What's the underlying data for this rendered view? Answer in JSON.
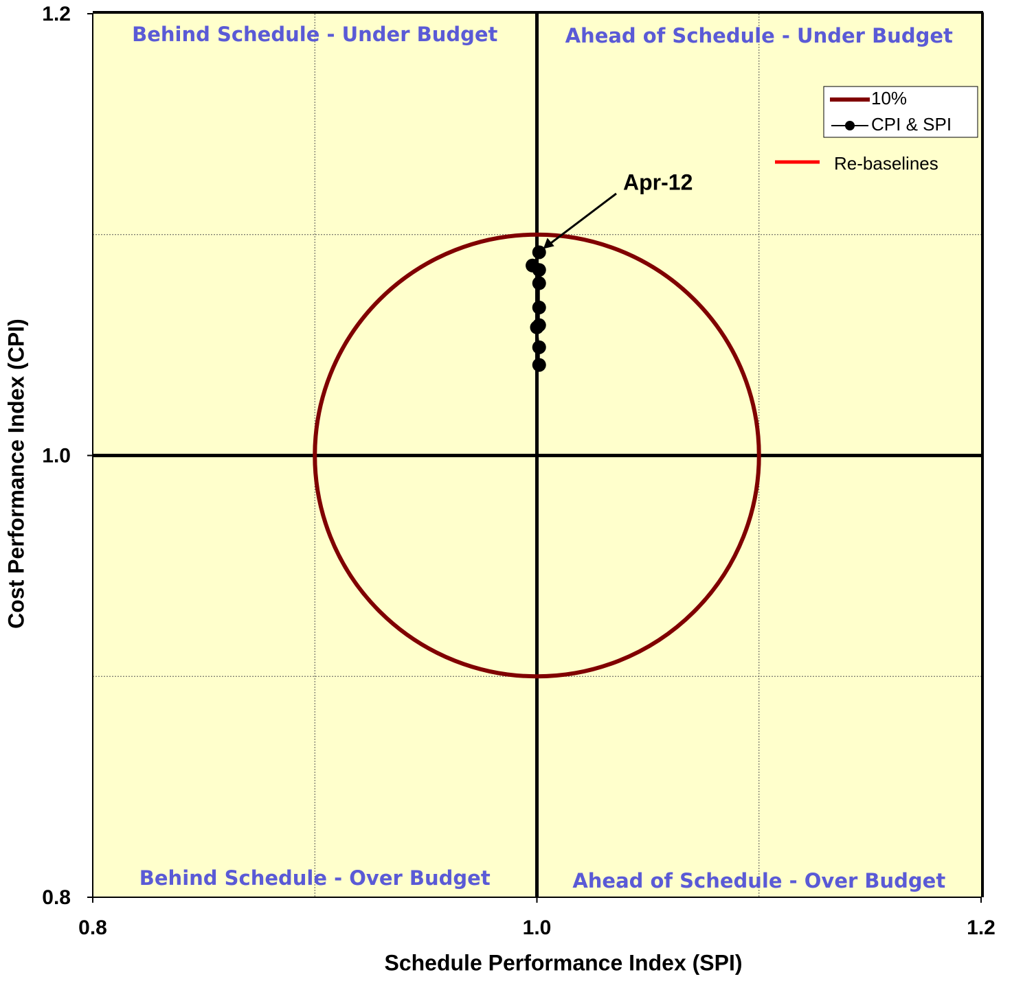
{
  "chart_data": {
    "type": "scatter",
    "x_label": "Schedule Performance Index (SPI)",
    "y_label": "Cost Performance Index (CPI)",
    "xlim": [
      0.8,
      1.2
    ],
    "ylim": [
      0.8,
      1.2
    ],
    "xticks": [
      {
        "value": 0.8,
        "label": "0.8"
      },
      {
        "value": 1.0,
        "label": "1.0"
      },
      {
        "value": 1.2,
        "label": "1.2"
      }
    ],
    "yticks": [
      {
        "value": 0.8,
        "label": "0.8"
      },
      {
        "value": 1.0,
        "label": "1.0"
      },
      {
        "value": 1.2,
        "label": "1.2"
      }
    ],
    "minor_grid": [
      0.9,
      1.1
    ],
    "grid": true,
    "background": "#ffffcc",
    "quadrant_color": "#5a5ad6",
    "quadrants": {
      "top_left": "Behind Schedule - Under Budget",
      "top_right": "Ahead of Schedule - Under Budget",
      "bottom_left": "Behind Schedule - Over Budget",
      "bottom_right": "Ahead of Schedule - Over Budget"
    },
    "circle": {
      "name": "10%",
      "color": "#800000",
      "center": [
        1.0,
        1.0
      ],
      "radius": 0.1
    },
    "series": [
      {
        "name": "CPI & SPI",
        "color": "#000000",
        "x": [
          1.001,
          0.998,
          1.001,
          1.001,
          1.001,
          1.001,
          1.0,
          1.001,
          1.001
        ],
        "values": [
          1.092,
          1.086,
          1.084,
          1.078,
          1.067,
          1.059,
          1.058,
          1.049,
          1.041
        ]
      },
      {
        "name": "Re-baselines",
        "color": "#ff0000",
        "x": [],
        "values": []
      }
    ],
    "annotation": {
      "text": "Apr-12",
      "point": 0
    }
  }
}
